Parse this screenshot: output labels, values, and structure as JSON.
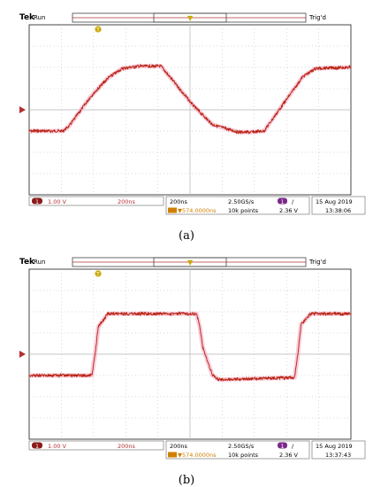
{
  "colors": {
    "trace": "#b8200f",
    "trace_glow": "#f2a6bf",
    "trigger_marker": "#c9a800",
    "ch1_marker": "#b23030",
    "ch_badge": "#8b1a1a",
    "trig_source_badge": "#7a2a8a",
    "grid": "#b5b5b5",
    "time_offset": "#d08000"
  },
  "panels": [
    {
      "caption": "(a)",
      "brand": "Tek",
      "status": "Run",
      "trigger_state": "Trig'd",
      "trigger_marker_label": "T",
      "ch_badge": "1",
      "ch_scale": "1.00 V",
      "timebase_left": "200ns",
      "timebase": "200ns",
      "time_offset": "▼574.0000ns",
      "sample_rate": "2.50GS/s",
      "record_length": "10k points",
      "trig_source": "1",
      "trig_slope": "/",
      "trig_level": "2.36 V",
      "date": "15 Aug 2019",
      "time": "13:38:06",
      "chart_data": {
        "type": "line",
        "series": [
          {
            "values_t_div": [
              0,
              0.7,
              1.05,
              1.25,
              1.9,
              2.45,
              2.9,
              3.4,
              4.1,
              5.1,
              5.7,
              6.5,
              6.9,
              7.3,
              8.1,
              8.5,
              8.9,
              10
            ],
            "values_v_div": [
              -1,
              -1,
              -1,
              -0.75,
              0.6,
              1.5,
              1.95,
              2.05,
              2.05,
              0.2,
              -0.7,
              -1.05,
              -1.05,
              -1,
              0.7,
              1.55,
              1.95,
              2
            ]
          }
        ],
        "x_divisions": 10,
        "y_divisions": 8,
        "y_range_div": [
          -4,
          4
        ],
        "grid": true
      }
    },
    {
      "caption": "(b)",
      "brand": "Tek",
      "status": "Run",
      "trigger_state": "Trig'd",
      "trigger_marker_label": "T",
      "ch_badge": "1",
      "ch_scale": "1.00 V",
      "timebase_left": "200ns",
      "timebase": "200ns",
      "time_offset": "▼574.0000ns",
      "sample_rate": "2.50GS/s",
      "record_length": "10k points",
      "trig_source": "1",
      "trig_slope": "/",
      "trig_level": "2.36 V",
      "date": "15 Aug 2019",
      "time": "13:37:43",
      "chart_data": {
        "type": "line",
        "series": [
          {
            "values_t_div": [
              0,
              1.95,
              2.05,
              2.15,
              2.45,
              5.2,
              5.3,
              5.4,
              5.7,
              5.9,
              8.25,
              8.35,
              8.45,
              8.75,
              10
            ],
            "values_v_div": [
              -1,
              -1,
              0,
              1.3,
              1.9,
              1.9,
              1.3,
              0.3,
              -1,
              -1.2,
              -1.1,
              0,
              1.4,
              1.9,
              1.9
            ]
          }
        ],
        "x_divisions": 10,
        "y_divisions": 8,
        "y_range_div": [
          -4,
          4
        ],
        "grid": true
      }
    }
  ]
}
